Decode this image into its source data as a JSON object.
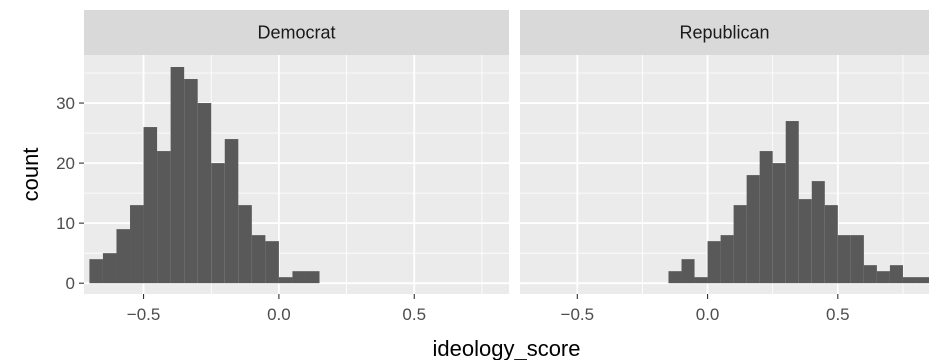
{
  "chart_data": {
    "type": "bar",
    "subtype": "faceted-histogram",
    "xlabel": "ideology_score",
    "ylabel": "count",
    "x_ticks": [
      "-0.5",
      "0.0",
      "0.5"
    ],
    "x_tick_values": [
      -0.5,
      0.0,
      0.5
    ],
    "y_ticks": [
      "0",
      "10",
      "20",
      "30"
    ],
    "y_tick_values": [
      0,
      10,
      20,
      30
    ],
    "xlim": [
      -0.72,
      0.85
    ],
    "ylim": [
      -1.8,
      38.0
    ],
    "bin_width": 0.05,
    "grid": true,
    "colors": {
      "bar": "#595959",
      "panel": "#ebebeb",
      "grid": "#ffffff",
      "strip": "#d9d9d9"
    },
    "facets": [
      {
        "label": "Democrat",
        "bin_centers": [
          -0.675,
          -0.625,
          -0.575,
          -0.525,
          -0.475,
          -0.425,
          -0.375,
          -0.325,
          -0.275,
          -0.225,
          -0.175,
          -0.125,
          -0.075,
          -0.025,
          0.025,
          0.075,
          0.125,
          0.175,
          0.225,
          0.275,
          0.325,
          0.375,
          0.425,
          0.475,
          0.525,
          0.575,
          0.625,
          0.675,
          0.725,
          0.775,
          0.825
        ],
        "counts": [
          4,
          5,
          9,
          13,
          26,
          22,
          36,
          34,
          30,
          20,
          24,
          13,
          8,
          7,
          1,
          2,
          2,
          0,
          0,
          0,
          0,
          0,
          0,
          0,
          0,
          0,
          0,
          0,
          0,
          0,
          0
        ]
      },
      {
        "label": "Republican",
        "bin_centers": [
          -0.675,
          -0.625,
          -0.575,
          -0.525,
          -0.475,
          -0.425,
          -0.375,
          -0.325,
          -0.275,
          -0.225,
          -0.175,
          -0.125,
          -0.075,
          -0.025,
          0.025,
          0.075,
          0.125,
          0.175,
          0.225,
          0.275,
          0.325,
          0.375,
          0.425,
          0.475,
          0.525,
          0.575,
          0.625,
          0.675,
          0.725,
          0.775,
          0.825
        ],
        "counts": [
          0,
          0,
          0,
          0,
          0,
          0,
          0,
          0,
          0,
          0,
          0,
          2,
          4,
          1,
          7,
          8,
          13,
          18,
          22,
          20,
          27,
          14,
          17,
          13,
          8,
          8,
          3,
          2,
          3,
          1,
          1
        ]
      }
    ]
  }
}
